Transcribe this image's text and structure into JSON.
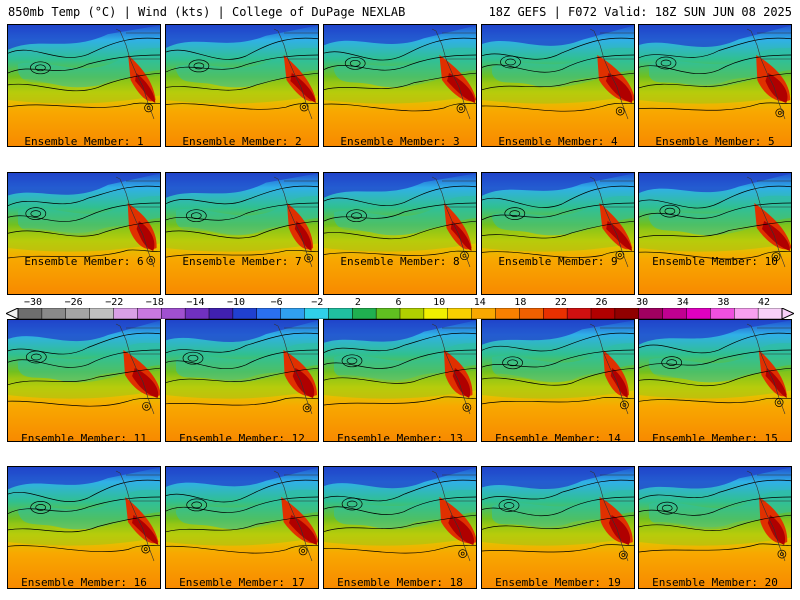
{
  "header": {
    "left_title": "850mb Temp (°C) | Wind (kts) | College of DuPage NEXLAB",
    "right_title": "18Z GEFS | F072 Valid: 18Z SUN JUN 08 2025"
  },
  "panels": [
    {
      "label": "Ensemble Member: 1"
    },
    {
      "label": "Ensemble Member: 2"
    },
    {
      "label": "Ensemble Member: 3"
    },
    {
      "label": "Ensemble Member: 4"
    },
    {
      "label": "Ensemble Member: 5"
    },
    {
      "label": "Ensemble Member: 6"
    },
    {
      "label": "Ensemble Member: 7"
    },
    {
      "label": "Ensemble Member: 8"
    },
    {
      "label": "Ensemble Member: 9"
    },
    {
      "label": "Ensemble Member: 10"
    },
    {
      "label": "Ensemble Member: 11"
    },
    {
      "label": "Ensemble Member: 12"
    },
    {
      "label": "Ensemble Member: 13"
    },
    {
      "label": "Ensemble Member: 14"
    },
    {
      "label": "Ensemble Member: 15"
    },
    {
      "label": "Ensemble Member: 16"
    },
    {
      "label": "Ensemble Member: 17"
    },
    {
      "label": "Ensemble Member: 18"
    },
    {
      "label": "Ensemble Member: 19"
    },
    {
      "label": "Ensemble Member: 20"
    }
  ],
  "colorbar": {
    "labels": [
      "−30",
      "−26",
      "−22",
      "−18",
      "−14",
      "−10",
      "−6",
      "−2",
      "2",
      "6",
      "10",
      "14",
      "18",
      "22",
      "26",
      "30",
      "34",
      "38",
      "42"
    ],
    "colors": [
      "#6e6e6e",
      "#8a8a8a",
      "#a5a5a5",
      "#c0c0c0",
      "#d9a0e6",
      "#c878e0",
      "#a050d0",
      "#7030c0",
      "#4020b0",
      "#2040d0",
      "#2a70f0",
      "#30a0f0",
      "#30d0e8",
      "#20c0a0",
      "#20b050",
      "#60c020",
      "#b0d000",
      "#f0f000",
      "#f8d000",
      "#f8a800",
      "#f88000",
      "#f06000",
      "#e83000",
      "#d01010",
      "#b00000",
      "#900000",
      "#a00060",
      "#c00090",
      "#e000c0",
      "#f050e0",
      "#f8a0f0",
      "#f8d0f8"
    ]
  },
  "icons": {
    "colorbar_left_arrow": "left-triangle",
    "colorbar_right_arrow": "right-triangle"
  }
}
